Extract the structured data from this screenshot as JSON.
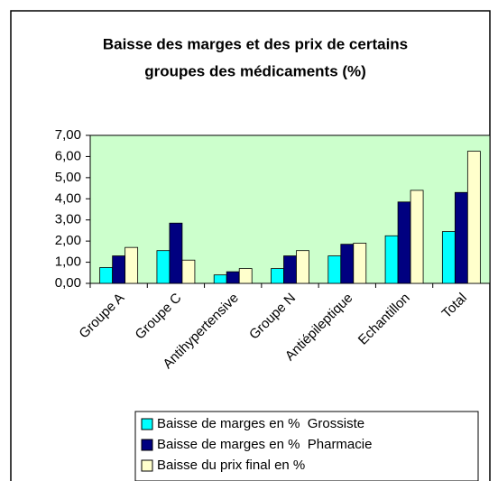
{
  "chart_data": {
    "type": "bar",
    "title": [
      "Baisse des marges et des prix de certains",
      "groupes des médicaments (%)"
    ],
    "categories": [
      "Groupe A",
      "Groupe C",
      "Antihypertensive",
      "Groupe N",
      "Antiépileptique",
      "Echantillon",
      "Total"
    ],
    "series": [
      {
        "name": "Baisse de marges en %  Grossiste",
        "color": "#00ffff",
        "values": [
          0.75,
          1.55,
          0.4,
          0.7,
          1.3,
          2.25,
          2.45
        ]
      },
      {
        "name": "Baisse de marges en %  Pharmacie",
        "color": "#000080",
        "values": [
          1.3,
          2.85,
          0.55,
          1.3,
          1.85,
          3.85,
          4.3
        ]
      },
      {
        "name": "Baisse du prix final en %",
        "color": "#ffffcc",
        "values": [
          1.7,
          1.1,
          0.7,
          1.55,
          1.9,
          4.4,
          6.25
        ]
      }
    ],
    "ylim": [
      0,
      7
    ],
    "yticks": [
      {
        "value": 0,
        "label": "0,00"
      },
      {
        "value": 1,
        "label": "1,00"
      },
      {
        "value": 2,
        "label": "2,00"
      },
      {
        "value": 3,
        "label": "3,00"
      },
      {
        "value": 4,
        "label": "4,00"
      },
      {
        "value": 5,
        "label": "5,00"
      },
      {
        "value": 6,
        "label": "6,00"
      },
      {
        "value": 7,
        "label": "7,00"
      }
    ],
    "plot_background": "#ccffcc"
  }
}
